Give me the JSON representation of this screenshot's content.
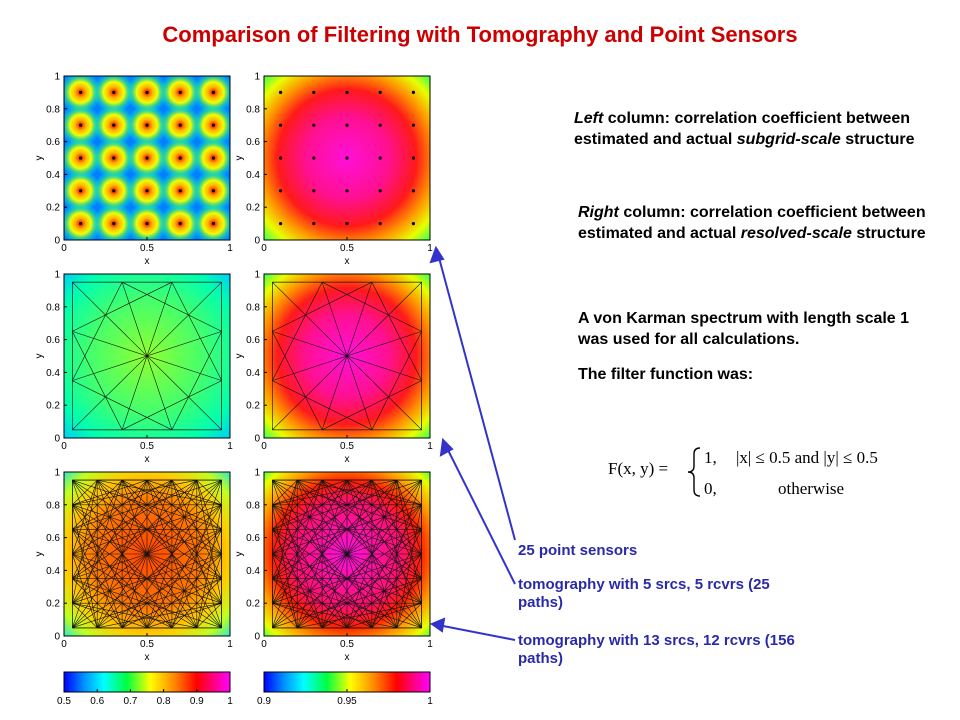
{
  "title": "Comparison of Filtering with Tomography and Point Sensors",
  "notes": {
    "left_em": "Left",
    "left_text_1": " column: correlation coefficient between estimated and actual ",
    "left_em2": "subgrid-scale",
    "left_text_2": " structure",
    "right_em": "Right",
    "right_text_1": " column: correlation coefficient between estimated and actual ",
    "right_em2": "resolved-scale",
    "right_text_2": " structure",
    "vonkarman": "A von Karman spectrum with length scale 1 was used for all calculations.",
    "filter_intro": "The filter function was:"
  },
  "formula": {
    "lhs": "F(x, y) =",
    "case1_value": "1,",
    "case1_cond": "|x| ≤ 0.5 and |y| ≤ 0.5",
    "case2_value": "0,",
    "case2_cond": "otherwise"
  },
  "legend": {
    "item1": "25 point sensors",
    "item2": "tomography with 5 srcs, 5 rcvrs (25 paths)",
    "item3": "tomography with 13 srcs, 12 rcvrs (156 paths)",
    "arrow_color": "#3333cc",
    "text_color": "#2a2aa8"
  },
  "colors": {
    "title": "#cc0000"
  },
  "chart_data": [
    {
      "type": "heatmap",
      "row": 1,
      "column": "left",
      "measure": "subgrid-scale correlation",
      "xlabel": "x",
      "ylabel": "y",
      "xticks": [
        "0",
        "0.5",
        "1"
      ],
      "yticks": [
        "0",
        "0.2",
        "0.4",
        "0.6",
        "0.8",
        "1"
      ],
      "xlim": [
        0,
        1
      ],
      "ylim": [
        0,
        1
      ],
      "sensors": "5x5 point sensors at 0.1, 0.3, 0.5, 0.7, 0.9",
      "clim": [
        0.5,
        1
      ]
    },
    {
      "type": "heatmap",
      "row": 1,
      "column": "right",
      "measure": "resolved-scale correlation",
      "xlabel": "x",
      "ylabel": "y",
      "xticks": [
        "0",
        "0.5",
        "1"
      ],
      "yticks": [
        "0",
        "0.2",
        "0.4",
        "0.6",
        "0.8",
        "1"
      ],
      "xlim": [
        0,
        1
      ],
      "ylim": [
        0,
        1
      ],
      "sensors": "5x5 point sensors at 0.1, 0.3, 0.5, 0.7, 0.9",
      "clim": [
        0.9,
        1
      ]
    },
    {
      "type": "heatmap",
      "row": 2,
      "column": "left",
      "measure": "subgrid-scale correlation",
      "xlabel": "x",
      "ylabel": "y",
      "xticks": [
        "0",
        "0.5",
        "1"
      ],
      "yticks": [
        "0",
        "0.2",
        "0.4",
        "0.6",
        "0.8",
        "1"
      ],
      "xlim": [
        0,
        1
      ],
      "ylim": [
        0,
        1
      ],
      "paths": 25,
      "clim": [
        0.5,
        1
      ]
    },
    {
      "type": "heatmap",
      "row": 2,
      "column": "right",
      "measure": "resolved-scale correlation",
      "xlabel": "x",
      "ylabel": "y",
      "xticks": [
        "0",
        "0.5",
        "1"
      ],
      "yticks": [
        "0",
        "0.2",
        "0.4",
        "0.6",
        "0.8",
        "1"
      ],
      "xlim": [
        0,
        1
      ],
      "ylim": [
        0,
        1
      ],
      "paths": 25,
      "clim": [
        0.9,
        1
      ]
    },
    {
      "type": "heatmap",
      "row": 3,
      "column": "left",
      "measure": "subgrid-scale correlation",
      "xlabel": "x",
      "ylabel": "y",
      "xticks": [
        "0",
        "0.5",
        "1"
      ],
      "yticks": [
        "0",
        "0.2",
        "0.4",
        "0.6",
        "0.8",
        "1"
      ],
      "xlim": [
        0,
        1
      ],
      "ylim": [
        0,
        1
      ],
      "paths": 156,
      "clim": [
        0.5,
        1
      ]
    },
    {
      "type": "heatmap",
      "row": 3,
      "column": "right",
      "measure": "resolved-scale correlation",
      "xlabel": "x",
      "ylabel": "y",
      "xticks": [
        "0",
        "0.5",
        "1"
      ],
      "yticks": [
        "0",
        "0.2",
        "0.4",
        "0.6",
        "0.8",
        "1"
      ],
      "xlim": [
        0,
        1
      ],
      "ylim": [
        0,
        1
      ],
      "paths": 156,
      "clim": [
        0.9,
        1
      ]
    },
    {
      "type": "colorbar",
      "column": "left",
      "range": [
        0.5,
        1
      ],
      "ticks": [
        "0.5",
        "0.6",
        "0.7",
        "0.8",
        "0.9",
        "1"
      ]
    },
    {
      "type": "colorbar",
      "column": "right",
      "range": [
        0.9,
        1
      ],
      "ticks": [
        "0.9",
        "0.95",
        "1"
      ]
    }
  ]
}
